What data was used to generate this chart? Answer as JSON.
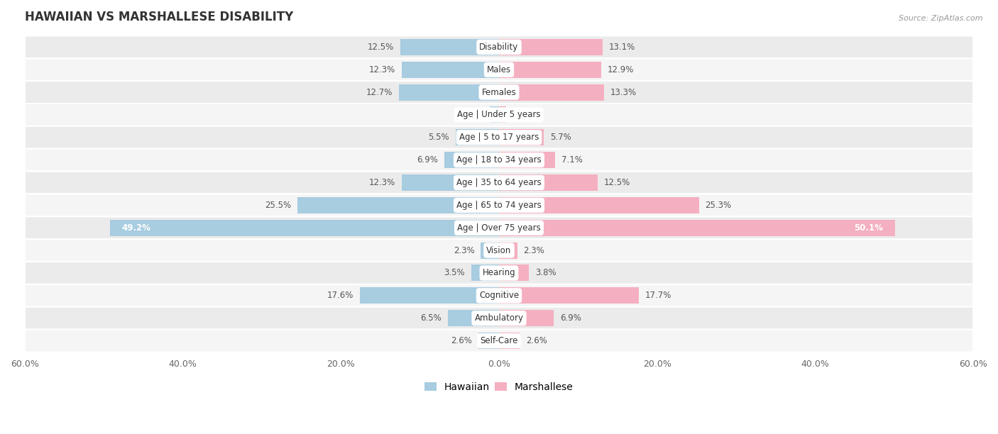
{
  "title": "HAWAIIAN VS MARSHALLESE DISABILITY",
  "source": "Source: ZipAtlas.com",
  "categories": [
    "Disability",
    "Males",
    "Females",
    "Age | Under 5 years",
    "Age | 5 to 17 years",
    "Age | 18 to 34 years",
    "Age | 35 to 64 years",
    "Age | 65 to 74 years",
    "Age | Over 75 years",
    "Vision",
    "Hearing",
    "Cognitive",
    "Ambulatory",
    "Self-Care"
  ],
  "hawaiian": [
    12.5,
    12.3,
    12.7,
    1.2,
    5.5,
    6.9,
    12.3,
    25.5,
    49.2,
    2.3,
    3.5,
    17.6,
    6.5,
    2.6
  ],
  "marshallese": [
    13.1,
    12.9,
    13.3,
    0.94,
    5.7,
    7.1,
    12.5,
    25.3,
    50.1,
    2.3,
    3.8,
    17.7,
    6.9,
    2.6
  ],
  "hawaiian_color": "#a8cce0",
  "marshallese_color": "#f4afc0",
  "row_colors": [
    "#ebebeb",
    "#f5f5f5"
  ],
  "xlim": 60.0,
  "bar_height": 0.72,
  "value_fontsize": 8.5,
  "title_fontsize": 12,
  "category_fontsize": 8.5,
  "axis_fontsize": 9,
  "legend_fontsize": 10
}
